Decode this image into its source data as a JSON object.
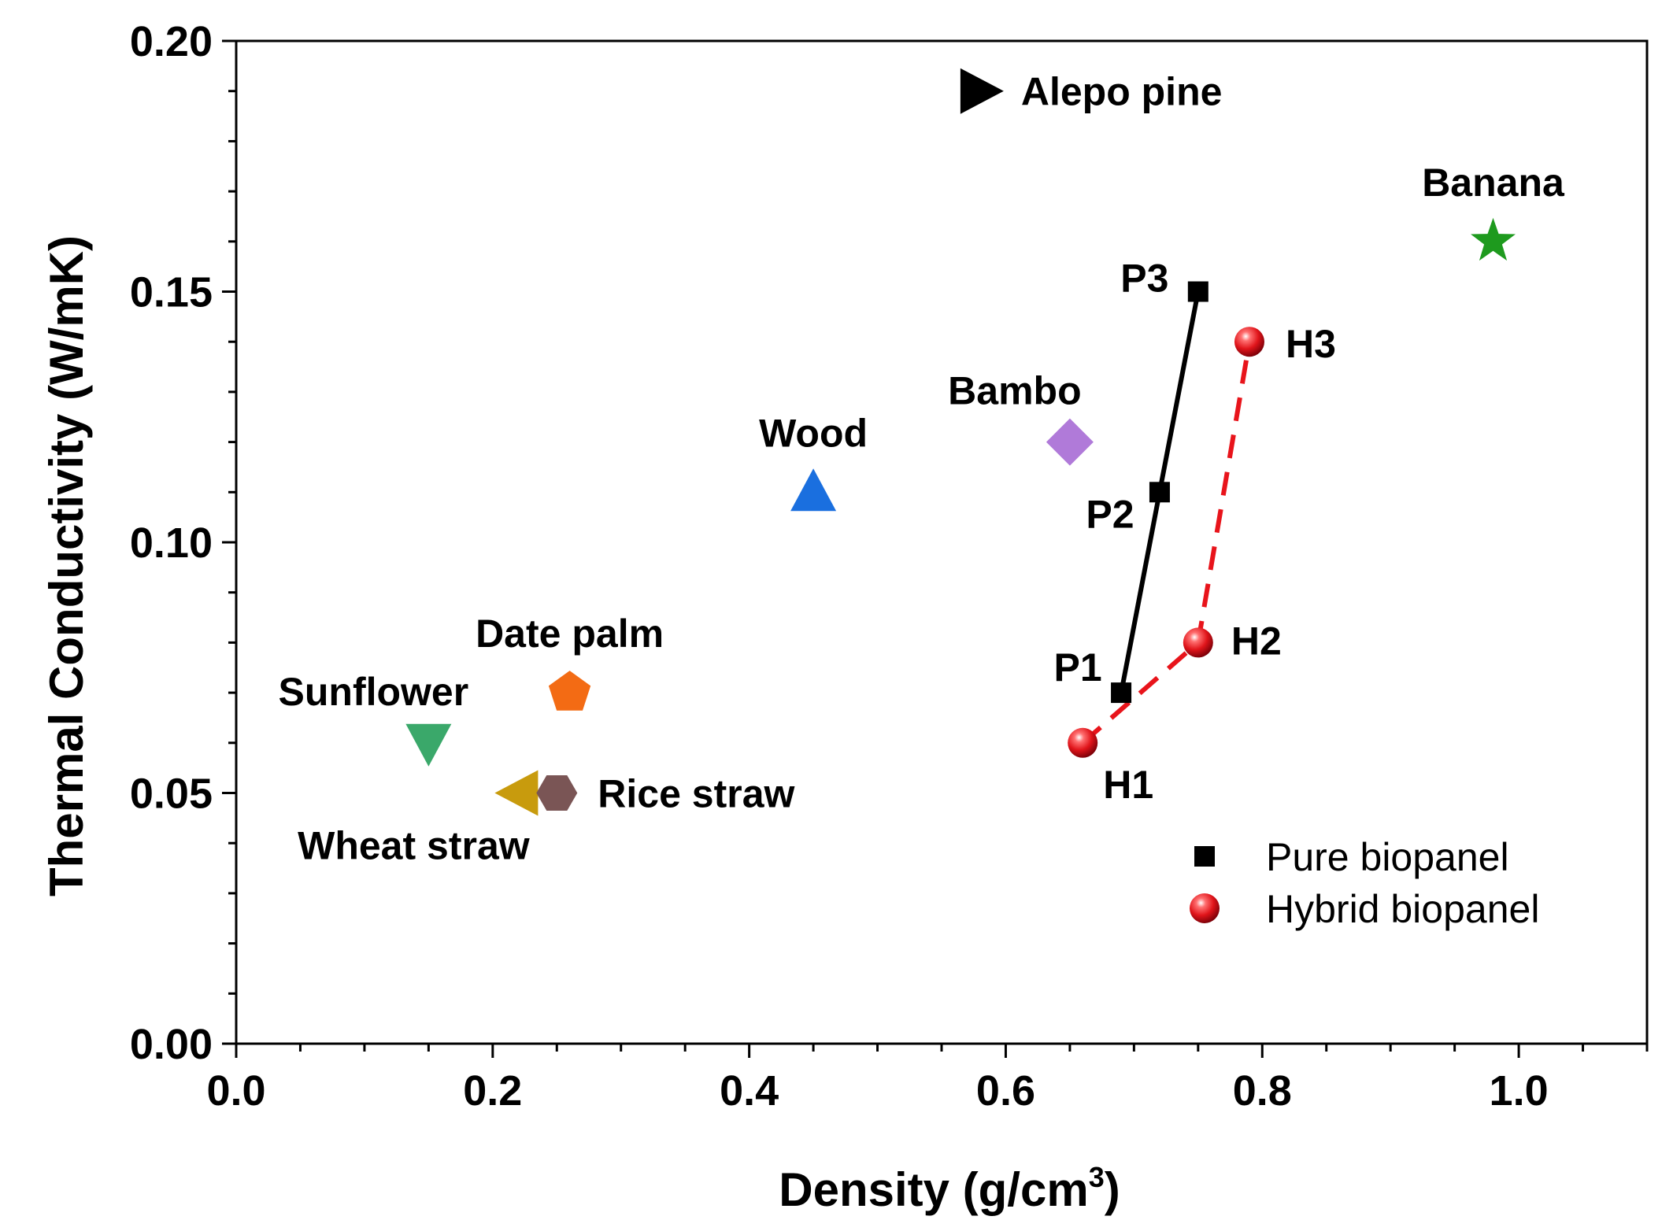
{
  "chart_data": {
    "type": "scatter",
    "title": "",
    "xlabel": "Density (g/cm",
    "xlabel_sup": "3",
    "xlabel_close": ")",
    "ylabel": "Thermal Conductivity (W/mK)",
    "xlim": [
      0,
      1.1
    ],
    "ylim": [
      0,
      0.2
    ],
    "xticks": [
      0.0,
      0.2,
      0.4,
      0.6,
      0.8,
      1.0
    ],
    "xtick_labels": [
      "0.0",
      "0.2",
      "0.4",
      "0.6",
      "0.8",
      "1.0"
    ],
    "yticks": [
      0.0,
      0.05,
      0.1,
      0.15,
      0.2
    ],
    "ytick_labels": [
      "0.00",
      "0.05",
      "0.10",
      "0.15",
      "0.20"
    ],
    "grid": false,
    "materials": [
      {
        "name": "Alepo pine",
        "x": 0.58,
        "y": 0.19,
        "marker": "triangle-right",
        "color": "#000000",
        "label_pos": "right"
      },
      {
        "name": "Banana",
        "x": 0.98,
        "y": 0.16,
        "marker": "star",
        "color": "#1e9a1e",
        "label_pos": "above"
      },
      {
        "name": "Bambo",
        "x": 0.65,
        "y": 0.12,
        "marker": "diamond",
        "color": "#b07ad9",
        "label_pos": "above-left"
      },
      {
        "name": "Wood",
        "x": 0.45,
        "y": 0.11,
        "marker": "triangle-up",
        "color": "#1a6fdf",
        "label_pos": "above"
      },
      {
        "name": "Date palm",
        "x": 0.26,
        "y": 0.07,
        "marker": "pentagon",
        "color": "#f36b14",
        "label_pos": "above"
      },
      {
        "name": "Sunflower",
        "x": 0.15,
        "y": 0.06,
        "marker": "triangle-down",
        "color": "#3aa86a",
        "label_pos": "above-left"
      },
      {
        "name": "Wheat straw",
        "x": 0.22,
        "y": 0.05,
        "marker": "triangle-left",
        "color": "#c89b0d",
        "label_pos": "below-left"
      },
      {
        "name": "Rice straw",
        "x": 0.25,
        "y": 0.05,
        "marker": "hexagon",
        "color": "#7a5555",
        "label_pos": "right"
      }
    ],
    "series": [
      {
        "name": "Pure biopanel",
        "marker": "square",
        "color": "#000000",
        "line_style": "solid",
        "points": [
          {
            "label": "P1",
            "x": 0.69,
            "y": 0.07
          },
          {
            "label": "P2",
            "x": 0.72,
            "y": 0.11
          },
          {
            "label": "P3",
            "x": 0.75,
            "y": 0.15
          }
        ]
      },
      {
        "name": "Hybrid biopanel",
        "marker": "sphere",
        "color": "#e8141b",
        "line_style": "dashed",
        "points": [
          {
            "label": "H1",
            "x": 0.66,
            "y": 0.06
          },
          {
            "label": "H2",
            "x": 0.75,
            "y": 0.08
          },
          {
            "label": "H3",
            "x": 0.79,
            "y": 0.14
          }
        ]
      }
    ],
    "legend": {
      "position": "bottom-right",
      "entries": [
        "Pure biopanel",
        "Hybrid biopanel"
      ]
    }
  }
}
